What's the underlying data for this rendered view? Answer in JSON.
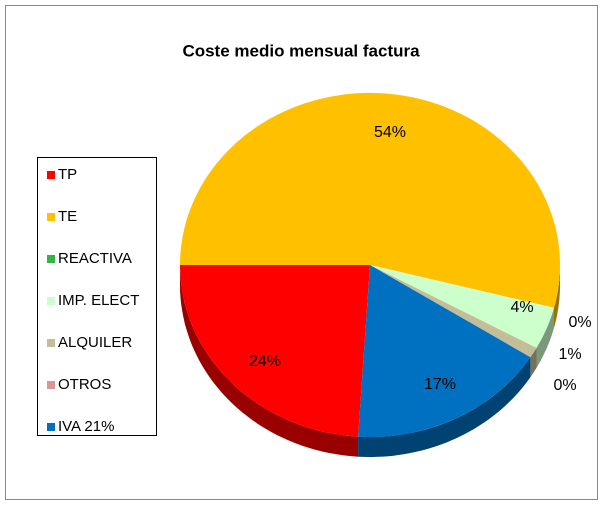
{
  "chart_data": {
    "type": "pie",
    "title": "Coste medio mensual factura",
    "categories": [
      "TP",
      "TE",
      "REACTIVA",
      "IMP. ELECT",
      "ALQUILER",
      "OTROS",
      "IVA 21%"
    ],
    "values": [
      24,
      54,
      0,
      4,
      1,
      0,
      17
    ],
    "value_labels": [
      "24%",
      "54%",
      "0%",
      "4%",
      "1%",
      "0%",
      "17%"
    ],
    "colors": [
      "#ff0000",
      "#ffc000",
      "#33b34a",
      "#ccffcc",
      "#c4bd97",
      "#d99694",
      "#0070c0"
    ],
    "legend": "left"
  }
}
